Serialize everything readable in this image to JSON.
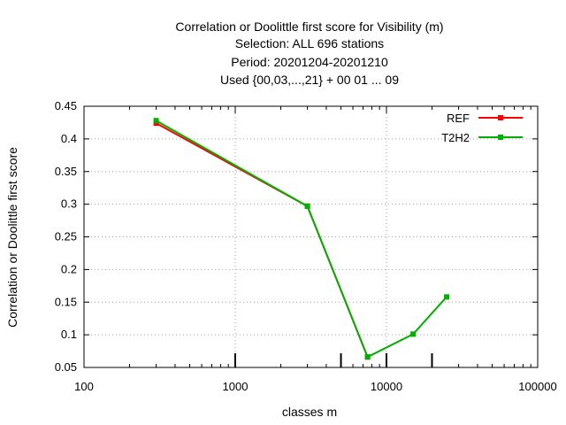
{
  "chart_data": {
    "type": "line",
    "title_lines": [
      "Correlation or Doolittle first score  for Visibility (m)",
      "Selection: ALL    696 stations",
      "Period: 20201204-20201210",
      "Used {00,03,...,21} + 00 01 ... 09"
    ],
    "xlabel": "classes m",
    "ylabel": "Correlation or Doolittle first score",
    "x_scale": "log",
    "xlim": [
      100,
      100000
    ],
    "ylim": [
      0.05,
      0.45
    ],
    "x_ticks": [
      100,
      1000,
      10000,
      100000
    ],
    "x_tick_labels": [
      "100",
      "1000",
      "10000",
      "100000"
    ],
    "y_ticks": [
      0.05,
      0.1,
      0.15,
      0.2,
      0.25,
      0.3,
      0.35,
      0.4,
      0.45
    ],
    "y_tick_labels": [
      "0.05",
      "0.1",
      "0.15",
      "0.2",
      "0.25",
      "0.3",
      "0.35",
      "0.4",
      "0.45"
    ],
    "class_markers_x": [
      1000,
      5000,
      10000,
      20000
    ],
    "grid": true,
    "legend_position": "top-right",
    "series": [
      {
        "name": "REF",
        "color": "#ff0000",
        "x": [
          300,
          3000,
          7500
        ],
        "y": [
          0.424,
          0.297,
          0.066
        ]
      },
      {
        "name": "T2H2",
        "color": "#00b000",
        "x": [
          300,
          3000,
          7500,
          15000,
          25000
        ],
        "y": [
          0.428,
          0.297,
          0.066,
          0.101,
          0.158
        ]
      }
    ]
  }
}
